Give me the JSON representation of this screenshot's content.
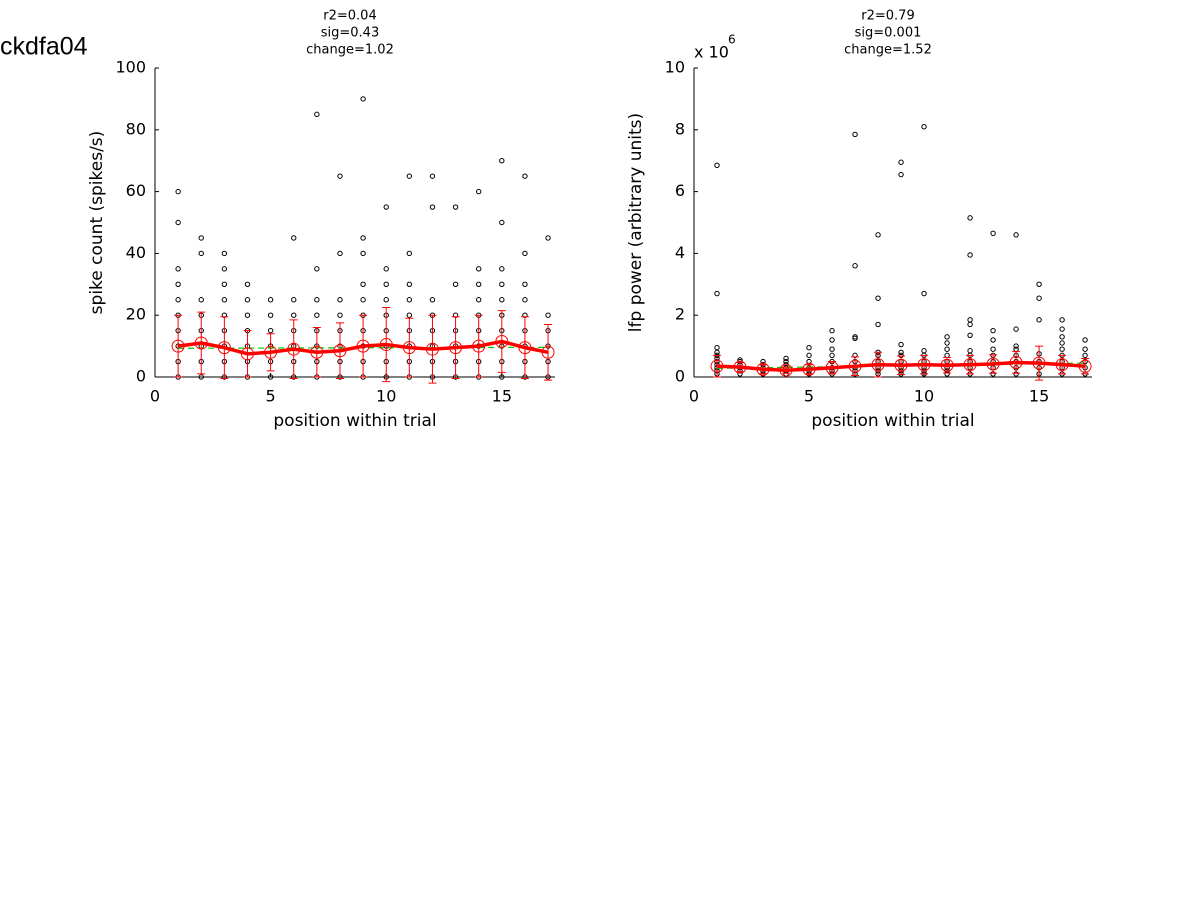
{
  "figure_title": "ckdfa04",
  "chart_data": [
    {
      "type": "scatter",
      "title": [
        "r2=0.04",
        "sig=0.43",
        "change=1.02"
      ],
      "xlabel": "position within trial",
      "ylabel": "spike count (spikes/s)",
      "xlim": [
        0,
        17.3
      ],
      "xticks": [
        0,
        5,
        10,
        15
      ],
      "ylim": [
        0,
        100
      ],
      "yticks": [
        0,
        20,
        40,
        60,
        80,
        100
      ],
      "point_color": "#000000",
      "mean_color": "#ff0000",
      "fit_color": "#00cc00",
      "positions": [
        1,
        2,
        3,
        4,
        5,
        6,
        7,
        8,
        9,
        10,
        11,
        12,
        13,
        14,
        15,
        16,
        17
      ],
      "points": [
        [
          0,
          5,
          10,
          15,
          20,
          25,
          30,
          35,
          50,
          60
        ],
        [
          0,
          5,
          10,
          15,
          20,
          25,
          40,
          45
        ],
        [
          0,
          5,
          10,
          15,
          20,
          25,
          30,
          35,
          40
        ],
        [
          0,
          5,
          10,
          15,
          20,
          25,
          30
        ],
        [
          0,
          5,
          10,
          15,
          20,
          25
        ],
        [
          0,
          5,
          10,
          15,
          20,
          25,
          45
        ],
        [
          0,
          5,
          10,
          15,
          20,
          25,
          35,
          85
        ],
        [
          0,
          5,
          10,
          15,
          20,
          25,
          40,
          65
        ],
        [
          0,
          5,
          10,
          15,
          20,
          25,
          30,
          40,
          45,
          90
        ],
        [
          0,
          5,
          10,
          15,
          20,
          25,
          30,
          35,
          55
        ],
        [
          0,
          5,
          10,
          15,
          20,
          25,
          30,
          40,
          65
        ],
        [
          0,
          5,
          10,
          15,
          20,
          25,
          55,
          65
        ],
        [
          0,
          5,
          10,
          15,
          20,
          30,
          55
        ],
        [
          0,
          5,
          10,
          15,
          20,
          25,
          30,
          35,
          60
        ],
        [
          0,
          5,
          10,
          15,
          20,
          25,
          30,
          35,
          50,
          70
        ],
        [
          0,
          5,
          10,
          15,
          20,
          25,
          30,
          40,
          65
        ],
        [
          0,
          5,
          10,
          15,
          20,
          45
        ]
      ],
      "means": [
        10,
        11,
        9.5,
        7.5,
        8,
        9,
        8,
        8.5,
        10,
        10.5,
        9.5,
        9,
        9.5,
        10,
        11.5,
        9.5,
        8
      ],
      "errors": [
        10,
        10,
        10,
        7.5,
        6,
        9.5,
        8,
        9,
        10,
        12,
        9.5,
        11,
        10,
        10,
        10,
        10,
        9
      ],
      "fit": {
        "x": [
          1,
          17
        ],
        "values": [
          9.3,
          9.6
        ]
      }
    },
    {
      "type": "scatter",
      "title": [
        "r2=0.79",
        "sig=0.001",
        "change=1.52"
      ],
      "xlabel": "position within trial",
      "ylabel": "lfp power (arbitrary units)",
      "y_multiplier": {
        "base": "x 10",
        "exponent": "6"
      },
      "xlim": [
        0,
        17.3
      ],
      "xticks": [
        0,
        5,
        10,
        15
      ],
      "ylim": [
        0,
        10
      ],
      "yticks": [
        0,
        2,
        4,
        6,
        8,
        10
      ],
      "point_color": "#000000",
      "mean_color": "#ff0000",
      "fit_color": "#00cc00",
      "positions": [
        1,
        2,
        3,
        4,
        5,
        6,
        7,
        8,
        9,
        10,
        11,
        12,
        13,
        14,
        15,
        16,
        17
      ],
      "points": [
        [
          0.1,
          0.2,
          0.3,
          0.4,
          0.5,
          0.6,
          0.7,
          0.8,
          0.95,
          2.7,
          6.85
        ],
        [
          0.1,
          0.2,
          0.3,
          0.4,
          0.5,
          0.55
        ],
        [
          0.1,
          0.2,
          0.3,
          0.4,
          0.5
        ],
        [
          0.1,
          0.2,
          0.3,
          0.4,
          0.5,
          0.6
        ],
        [
          0.1,
          0.2,
          0.3,
          0.5,
          0.7,
          0.95
        ],
        [
          0.1,
          0.2,
          0.3,
          0.5,
          0.7,
          0.9,
          1.2,
          1.5
        ],
        [
          0.1,
          0.2,
          0.3,
          0.5,
          0.7,
          1.25,
          1.3,
          3.6,
          7.85
        ],
        [
          0.1,
          0.2,
          0.3,
          0.5,
          0.7,
          0.8,
          1.7,
          2.55,
          4.6
        ],
        [
          0.1,
          0.2,
          0.3,
          0.5,
          0.7,
          0.8,
          1.05,
          6.55,
          6.95
        ],
        [
          0.1,
          0.2,
          0.3,
          0.5,
          0.7,
          0.85,
          2.7,
          8.1
        ],
        [
          0.1,
          0.2,
          0.3,
          0.5,
          0.7,
          0.9,
          1.1,
          1.3
        ],
        [
          0.1,
          0.3,
          0.5,
          0.7,
          0.85,
          1.35,
          1.7,
          1.85,
          3.95,
          5.15
        ],
        [
          0.1,
          0.3,
          0.5,
          0.7,
          0.9,
          1.2,
          1.5,
          4.65
        ],
        [
          0.1,
          0.3,
          0.5,
          0.7,
          0.9,
          1.0,
          1.55,
          4.6
        ],
        [
          0.1,
          0.3,
          0.5,
          0.75,
          1.85,
          2.55,
          3.0
        ],
        [
          0.1,
          0.3,
          0.5,
          0.7,
          0.9,
          1.1,
          1.3,
          1.55,
          1.85
        ],
        [
          0.1,
          0.3,
          0.5,
          0.7,
          0.9,
          1.2
        ]
      ],
      "means": [
        0.35,
        0.32,
        0.25,
        0.22,
        0.25,
        0.3,
        0.35,
        0.4,
        0.38,
        0.4,
        0.38,
        0.4,
        0.42,
        0.47,
        0.45,
        0.4,
        0.35
      ],
      "errors": [
        0.35,
        0.15,
        0.15,
        0.1,
        0.15,
        0.2,
        0.3,
        0.4,
        0.3,
        0.3,
        0.25,
        0.3,
        0.3,
        0.35,
        0.55,
        0.3,
        0.25
      ],
      "fit": {
        "x": [
          1,
          17
        ],
        "values": [
          0.28,
          0.45
        ]
      }
    }
  ]
}
